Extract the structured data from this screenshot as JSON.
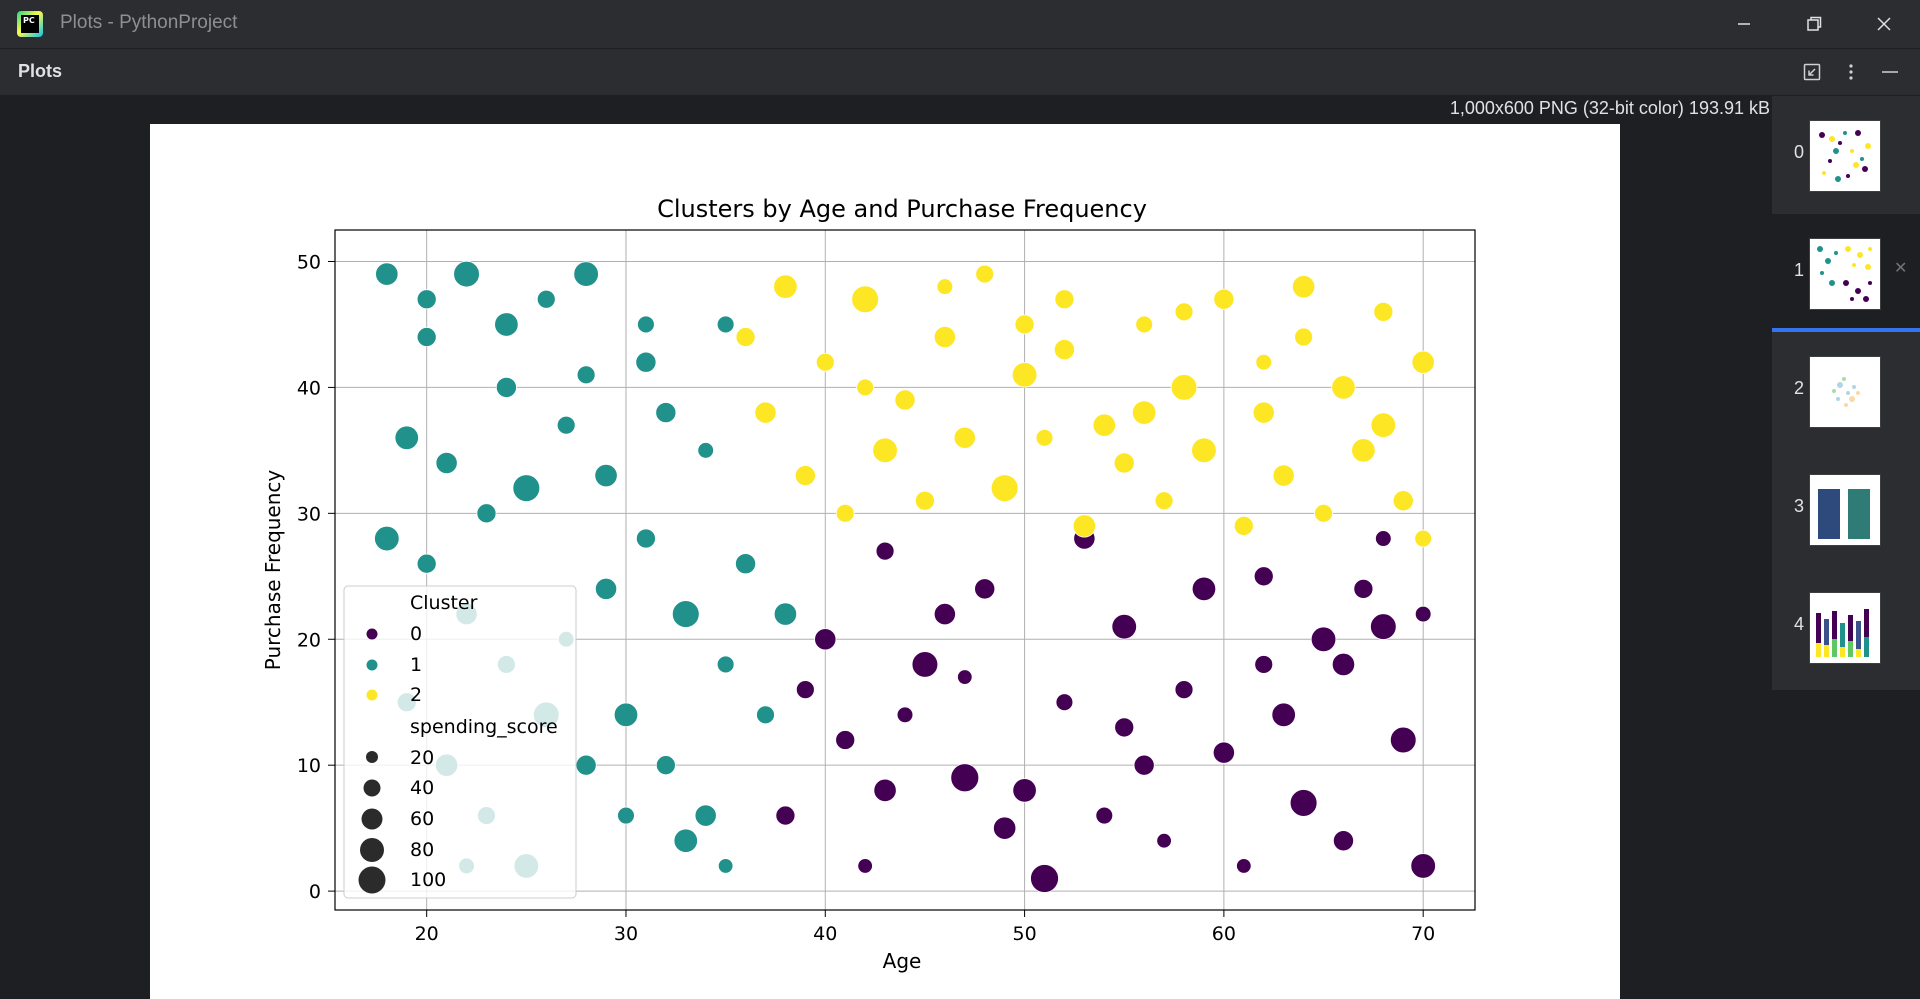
{
  "window": {
    "title": "Plots - PythonProject",
    "app_icon_text": "PC"
  },
  "toolbar": {
    "title": "Plots"
  },
  "image_info": "1,000x600 PNG (32-bit color) 193.91 kB",
  "thumbnails": [
    {
      "index": "0"
    },
    {
      "index": "1",
      "selected": true
    },
    {
      "index": "2"
    },
    {
      "index": "3"
    },
    {
      "index": "4"
    }
  ],
  "colors": {
    "cluster_0": "#440154",
    "cluster_1": "#21918c",
    "cluster_2": "#fde725",
    "accent": "#3574f0"
  },
  "icons": [
    "restore-icon",
    "more-vertical-icon",
    "minimize-panel-icon"
  ],
  "chart_data": {
    "type": "scatter",
    "title": "Clusters by Age and Purchase Frequency",
    "xlabel": "Age",
    "ylabel": "Purchase Frequency",
    "xlim": [
      15.4,
      72.6
    ],
    "ylim": [
      -1.5,
      52.5
    ],
    "xticks": [
      20,
      30,
      40,
      50,
      60,
      70
    ],
    "yticks": [
      0,
      10,
      20,
      30,
      40,
      50
    ],
    "grid": true,
    "legend": {
      "placement": "lower-left",
      "hue_title": "Cluster",
      "hue_entries": [
        "0",
        "1",
        "2"
      ],
      "size_title": "spending_score",
      "size_entries": [
        "20",
        "40",
        "60",
        "80",
        "100"
      ]
    },
    "series": [
      {
        "name": "0",
        "points": [
          [
            40,
            20,
            70
          ],
          [
            41,
            12,
            60
          ],
          [
            43,
            27,
            55
          ],
          [
            45,
            18,
            90
          ],
          [
            48,
            24,
            65
          ],
          [
            50,
            8,
            80
          ],
          [
            52,
            15,
            50
          ],
          [
            55,
            21,
            85
          ],
          [
            57,
            4,
            40
          ],
          [
            60,
            11,
            70
          ],
          [
            62,
            25,
            60
          ],
          [
            64,
            7,
            95
          ],
          [
            66,
            18,
            75
          ],
          [
            68,
            28,
            45
          ],
          [
            70,
            2,
            85
          ],
          [
            38,
            6,
            60
          ],
          [
            42,
            2,
            40
          ],
          [
            47,
            9,
            100
          ],
          [
            53,
            28,
            70
          ],
          [
            58,
            16,
            55
          ],
          [
            63,
            14,
            80
          ],
          [
            67,
            24,
            60
          ],
          [
            69,
            12,
            90
          ],
          [
            44,
            14,
            45
          ],
          [
            49,
            5,
            75
          ],
          [
            56,
            10,
            65
          ],
          [
            61,
            2,
            40
          ],
          [
            65,
            20,
            85
          ],
          [
            39,
            16,
            55
          ],
          [
            46,
            22,
            70
          ],
          [
            51,
            1,
            100
          ],
          [
            54,
            6,
            50
          ],
          [
            59,
            24,
            80
          ],
          [
            66,
            4,
            65
          ],
          [
            68,
            21,
            90
          ],
          [
            43,
            8,
            75
          ],
          [
            47,
            17,
            40
          ],
          [
            55,
            13,
            60
          ],
          [
            62,
            18,
            55
          ],
          [
            70,
            22,
            45
          ]
        ]
      },
      {
        "name": "1",
        "points": [
          [
            18,
            49,
            75
          ],
          [
            20,
            44,
            60
          ],
          [
            22,
            49,
            90
          ],
          [
            24,
            40,
            65
          ],
          [
            26,
            47,
            55
          ],
          [
            28,
            49,
            85
          ],
          [
            31,
            45,
            50
          ],
          [
            19,
            36,
            80
          ],
          [
            21,
            34,
            70
          ],
          [
            23,
            30,
            60
          ],
          [
            25,
            32,
            95
          ],
          [
            27,
            37,
            55
          ],
          [
            29,
            33,
            75
          ],
          [
            32,
            38,
            65
          ],
          [
            34,
            35,
            45
          ],
          [
            18,
            28,
            85
          ],
          [
            20,
            26,
            60
          ],
          [
            22,
            22,
            70
          ],
          [
            24,
            18,
            55
          ],
          [
            26,
            14,
            90
          ],
          [
            28,
            10,
            65
          ],
          [
            30,
            6,
            50
          ],
          [
            33,
            4,
            80
          ],
          [
            35,
            2,
            40
          ],
          [
            19,
            15,
            60
          ],
          [
            21,
            10,
            75
          ],
          [
            23,
            6,
            55
          ],
          [
            25,
            2,
            85
          ],
          [
            27,
            20,
            45
          ],
          [
            29,
            24,
            70
          ],
          [
            31,
            28,
            60
          ],
          [
            33,
            22,
            95
          ],
          [
            35,
            18,
            50
          ],
          [
            36,
            26,
            65
          ],
          [
            38,
            22,
            75
          ],
          [
            37,
            14,
            55
          ],
          [
            30,
            14,
            80
          ],
          [
            32,
            10,
            60
          ],
          [
            34,
            6,
            70
          ],
          [
            22,
            2,
            45
          ],
          [
            20,
            47,
            60
          ],
          [
            24,
            45,
            80
          ],
          [
            28,
            41,
            55
          ],
          [
            31,
            42,
            65
          ],
          [
            35,
            45,
            50
          ]
        ]
      },
      {
        "name": "2",
        "points": [
          [
            36,
            44,
            60
          ],
          [
            38,
            48,
            80
          ],
          [
            40,
            42,
            55
          ],
          [
            42,
            47,
            95
          ],
          [
            44,
            39,
            65
          ],
          [
            46,
            44,
            70
          ],
          [
            48,
            49,
            55
          ],
          [
            50,
            41,
            85
          ],
          [
            52,
            47,
            60
          ],
          [
            54,
            37,
            75
          ],
          [
            56,
            45,
            50
          ],
          [
            58,
            40,
            90
          ],
          [
            60,
            47,
            65
          ],
          [
            62,
            38,
            70
          ],
          [
            64,
            44,
            55
          ],
          [
            66,
            40,
            80
          ],
          [
            68,
            46,
            60
          ],
          [
            70,
            42,
            75
          ],
          [
            39,
            33,
            65
          ],
          [
            41,
            30,
            55
          ],
          [
            43,
            35,
            85
          ],
          [
            45,
            31,
            60
          ],
          [
            47,
            36,
            70
          ],
          [
            49,
            32,
            95
          ],
          [
            51,
            36,
            50
          ],
          [
            53,
            29,
            75
          ],
          [
            55,
            34,
            65
          ],
          [
            57,
            31,
            55
          ],
          [
            59,
            35,
            85
          ],
          [
            61,
            29,
            60
          ],
          [
            63,
            33,
            70
          ],
          [
            65,
            30,
            55
          ],
          [
            67,
            35,
            80
          ],
          [
            69,
            31,
            65
          ],
          [
            70,
            28,
            50
          ],
          [
            46,
            48,
            45
          ],
          [
            52,
            43,
            65
          ],
          [
            58,
            46,
            55
          ],
          [
            64,
            48,
            75
          ],
          [
            68,
            37,
            85
          ],
          [
            37,
            38,
            70
          ],
          [
            42,
            40,
            50
          ],
          [
            50,
            45,
            60
          ],
          [
            56,
            38,
            80
          ],
          [
            62,
            42,
            45
          ]
        ]
      }
    ]
  }
}
